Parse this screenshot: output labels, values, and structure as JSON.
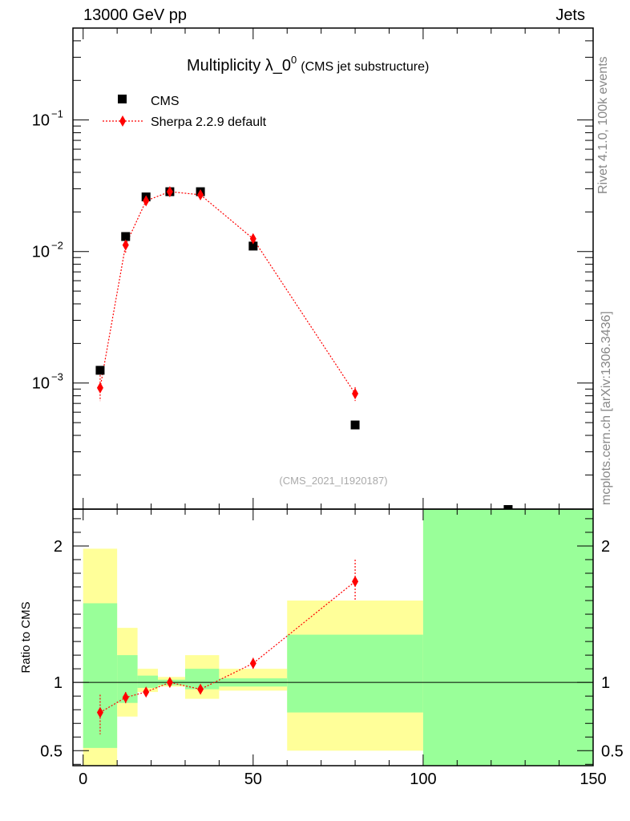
{
  "header": {
    "left": "13000 GeV pp",
    "right": "Jets"
  },
  "side_labels": {
    "top": "Rivet 4.1.0,  100k events",
    "bottom": "mcplots.cern.ch [arXiv:1306.3436]"
  },
  "colors": {
    "cms": "#000000",
    "sherpa": "#ff0000",
    "band_inner": "#99ff99",
    "band_outer": "#ffff99"
  },
  "chart_data": [
    {
      "type": "scatter",
      "title_main": "Multiplicity λ_0",
      "title_sup": "0",
      "title_sub": "(CMS jet substructure)",
      "watermark": "(CMS_2021_I1920187)",
      "yscale": "log",
      "ylim": [
        0.00011,
        0.5
      ],
      "xlim": [
        -3,
        150
      ],
      "yticks": [
        {
          "value": 0.1,
          "base": "10",
          "exp": "−1"
        },
        {
          "value": 0.01,
          "base": "10",
          "exp": "−2"
        },
        {
          "value": 0.001,
          "base": "10",
          "exp": "−3"
        }
      ],
      "legend_placement": "top-left",
      "series": [
        {
          "name": "CMS",
          "marker": "square",
          "points": [
            {
              "x": 5,
              "y": 0.00125
            },
            {
              "x": 12.5,
              "y": 0.013
            },
            {
              "x": 18.5,
              "y": 0.026
            },
            {
              "x": 25.5,
              "y": 0.0285
            },
            {
              "x": 34.5,
              "y": 0.0285
            },
            {
              "x": 50,
              "y": 0.011
            },
            {
              "x": 80,
              "y": 0.00048
            }
          ]
        },
        {
          "name": "Sherpa 2.2.9 default",
          "marker": "diamond",
          "points": [
            {
              "x": 5,
              "y": 0.00092,
              "lo": 0.00073,
              "hi": 0.00115
            },
            {
              "x": 12.5,
              "y": 0.0112,
              "lo": 0.0098,
              "hi": 0.0126
            },
            {
              "x": 18.5,
              "y": 0.0243,
              "lo": 0.0232,
              "hi": 0.0254
            },
            {
              "x": 25.5,
              "y": 0.0285,
              "lo": 0.0277,
              "hi": 0.0293
            },
            {
              "x": 34.5,
              "y": 0.027,
              "lo": 0.0262,
              "hi": 0.0278
            },
            {
              "x": 50,
              "y": 0.0125,
              "lo": 0.0119,
              "hi": 0.0131
            },
            {
              "x": 80,
              "y": 0.00083,
              "lo": 0.00073,
              "hi": 0.00093
            }
          ]
        }
      ]
    },
    {
      "type": "scatter",
      "ylabel": "Ratio to CMS",
      "ylim": [
        0.39,
        2.27
      ],
      "xlim": [
        -3,
        150
      ],
      "yticks": [
        "2",
        "1",
        "0.5"
      ],
      "ytick_values": [
        2,
        1,
        0.5
      ],
      "xticks": [
        "0",
        "50",
        "100",
        "150"
      ],
      "xtick_values": [
        0,
        50,
        100,
        150
      ],
      "reference_line": 1,
      "bands": [
        {
          "x0": 0,
          "x1": 10,
          "inner": [
            0.52,
            1.58
          ],
          "outer": [
            0.2,
            1.98
          ]
        },
        {
          "x0": 10,
          "x1": 16,
          "inner": [
            0.85,
            1.2
          ],
          "outer": [
            0.75,
            1.4
          ]
        },
        {
          "x0": 16,
          "x1": 22,
          "inner": [
            0.96,
            1.05
          ],
          "outer": [
            0.93,
            1.1
          ]
        },
        {
          "x0": 22,
          "x1": 30,
          "inner": [
            0.98,
            1.02
          ],
          "outer": [
            0.97,
            1.04
          ]
        },
        {
          "x0": 30,
          "x1": 40,
          "inner": [
            0.95,
            1.1
          ],
          "outer": [
            0.88,
            1.2
          ]
        },
        {
          "x0": 40,
          "x1": 60,
          "inner": [
            0.97,
            1.03
          ],
          "outer": [
            0.94,
            1.1
          ]
        },
        {
          "x0": 60,
          "x1": 100,
          "inner": [
            0.78,
            1.35
          ],
          "outer": [
            0.5,
            1.6
          ]
        },
        {
          "x0": 100,
          "x1": 150,
          "inner": [
            0.2,
            3.0
          ],
          "outer": [
            0.2,
            3.0
          ]
        }
      ],
      "series": [
        {
          "name": "Sherpa 2.2.9 default",
          "points": [
            {
              "x": 5,
              "y": 0.78,
              "lo": 0.62,
              "hi": 0.91
            },
            {
              "x": 12.5,
              "y": 0.89,
              "lo": 0.84,
              "hi": 0.93
            },
            {
              "x": 18.5,
              "y": 0.93,
              "lo": 0.9,
              "hi": 0.96
            },
            {
              "x": 25.5,
              "y": 1.0,
              "lo": 0.97,
              "hi": 1.03
            },
            {
              "x": 34.5,
              "y": 0.95,
              "lo": 0.92,
              "hi": 0.98
            },
            {
              "x": 50,
              "y": 1.14,
              "lo": 1.1,
              "hi": 1.18
            },
            {
              "x": 80,
              "y": 1.74,
              "lo": 1.6,
              "hi": 1.9
            }
          ]
        }
      ]
    }
  ]
}
